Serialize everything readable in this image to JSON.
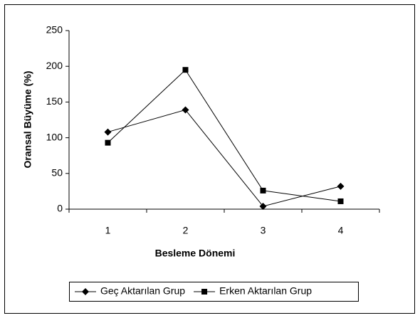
{
  "chart_data": {
    "type": "line",
    "categories": [
      "1",
      "2",
      "3",
      "4"
    ],
    "x_label": "Besleme Dönemi",
    "y_label": "Oransal Büyüme (%)",
    "series": [
      {
        "name": "Geç Aktarılan Grup",
        "color": "#000000",
        "marker": "diamond",
        "values": [
          108,
          139,
          4,
          32
        ]
      },
      {
        "name": "Erken Aktarılan Grup",
        "color": "#000000",
        "marker": "square",
        "values": [
          93,
          195,
          26,
          11
        ]
      }
    ],
    "ylim": [
      0,
      250
    ],
    "yticks": [
      0,
      50,
      100,
      150,
      200,
      250
    ],
    "grid": false,
    "legend": "bottom"
  }
}
